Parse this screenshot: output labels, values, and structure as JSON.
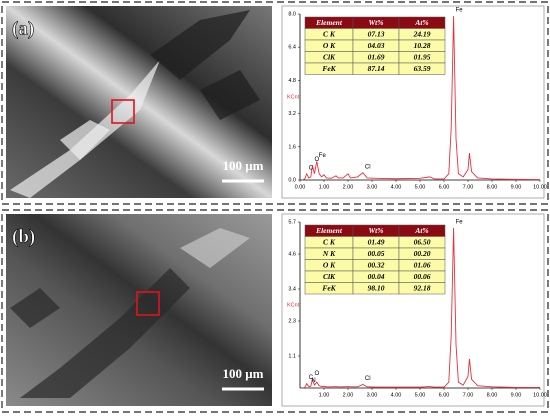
{
  "chart_data": [
    {
      "type": "line",
      "panel_label": "(a)",
      "scale_bar": "100 μm",
      "ylabel": "KCnt",
      "x": [
        0.1,
        0.2,
        0.28,
        0.36,
        0.45,
        0.52,
        0.6,
        0.7,
        0.8,
        0.9,
        1.0,
        1.1,
        1.3,
        1.5,
        1.6,
        1.8,
        2.0,
        2.1,
        2.4,
        2.62,
        2.8,
        3.2,
        4.0,
        5.0,
        5.4,
        5.6,
        6.0,
        6.2,
        6.3,
        6.4,
        6.5,
        6.6,
        6.8,
        7.0,
        7.06,
        7.15,
        7.4,
        8.0,
        9.0,
        10.0
      ],
      "series": [
        {
          "color": "#e8303a",
          "values": [
            0,
            0.05,
            0.3,
            0.1,
            0.15,
            0.7,
            0.3,
            0.9,
            0.3,
            0.15,
            0.25,
            0.1,
            0.08,
            0.2,
            0.1,
            0.1,
            0.3,
            0.1,
            0.15,
            0.35,
            0.1,
            0.08,
            0.06,
            0.08,
            0.15,
            0.05,
            0.05,
            0.3,
            2.5,
            7.9,
            2.0,
            0.3,
            0.15,
            0.5,
            1.3,
            0.4,
            0.1,
            0.05,
            0.03,
            0.02
          ]
        }
      ],
      "xlim": [
        0,
        10
      ],
      "xticks": [
        {
          "value": 0,
          "label": "0.00"
        },
        {
          "value": 1,
          "label": "1.00"
        },
        {
          "value": 2,
          "label": "2.00"
        },
        {
          "value": 3,
          "label": "3.00"
        },
        {
          "value": 4,
          "label": "4.00"
        },
        {
          "value": 5,
          "label": "5.00"
        },
        {
          "value": 6,
          "label": "6.00"
        },
        {
          "value": 7,
          "label": "7.00"
        },
        {
          "value": 8,
          "label": "8.00"
        },
        {
          "value": 9,
          "label": "9.00"
        },
        {
          "value": 10,
          "label": "10.00"
        }
      ],
      "ylim": [
        0,
        8.0
      ],
      "yticks": [
        {
          "value": 0,
          "label": "0.0"
        },
        1.6,
        3.2,
        4.8,
        6.4,
        {
          "value": 8,
          "label": "8.0"
        }
      ],
      "annotations": [
        {
          "text": "Fe",
          "x": 6.4
        },
        {
          "text": "C",
          "x": 0.28
        },
        {
          "text": "O",
          "x": 0.52
        },
        {
          "text": "Fe",
          "x": 0.7
        },
        {
          "text": "Cl",
          "x": 2.62
        }
      ],
      "table": {
        "header": [
          "Element",
          "Wt%",
          "At%"
        ],
        "rows": [
          [
            "C K",
            "07.13",
            "24.19"
          ],
          [
            "O K",
            "04.03",
            "10.28"
          ],
          [
            "ClK",
            "01.69",
            "01.95"
          ],
          [
            "FeK",
            "87.14",
            "63.59"
          ]
        ]
      }
    },
    {
      "type": "line",
      "panel_label": "(b)",
      "scale_bar": "100 μm",
      "ylabel": "KCnt",
      "x": [
        0.1,
        0.2,
        0.28,
        0.36,
        0.45,
        0.52,
        0.6,
        0.7,
        0.8,
        0.9,
        1.0,
        1.1,
        1.3,
        1.5,
        1.6,
        1.8,
        2.0,
        2.1,
        2.4,
        2.62,
        2.8,
        3.2,
        4.0,
        5.0,
        5.4,
        5.6,
        6.0,
        6.2,
        6.3,
        6.4,
        6.5,
        6.6,
        6.8,
        7.0,
        7.06,
        7.15,
        7.4,
        8.0,
        9.0,
        10.0
      ],
      "series": [
        {
          "color": "#e8303a",
          "values": [
            0,
            0.02,
            0.15,
            0.05,
            0.06,
            0.3,
            0.1,
            0.2,
            0.08,
            0.05,
            0.06,
            0.04,
            0.04,
            0.05,
            0.04,
            0.04,
            0.05,
            0.04,
            0.04,
            0.12,
            0.04,
            0.03,
            0.03,
            0.03,
            0.05,
            0.03,
            0.03,
            0.2,
            1.8,
            5.5,
            1.5,
            0.2,
            0.1,
            0.4,
            1.0,
            0.3,
            0.08,
            0.04,
            0.02,
            0.02
          ]
        }
      ],
      "xlim": [
        0,
        10
      ],
      "xticks": [
        {
          "value": 1,
          "label": "1.00"
        },
        {
          "value": 2,
          "label": "2.00"
        },
        {
          "value": 3,
          "label": "3.00"
        },
        {
          "value": 4,
          "label": "4.00"
        },
        {
          "value": 5,
          "label": "5.00"
        },
        {
          "value": 6,
          "label": "6.00"
        },
        {
          "value": 7,
          "label": "7.00"
        },
        {
          "value": 8,
          "label": "8.00"
        },
        {
          "value": 9,
          "label": "9.00"
        },
        {
          "value": 10,
          "label": "10.00"
        }
      ],
      "ylim": [
        0,
        5.7
      ],
      "yticks": [
        1.1,
        2.3,
        3.4,
        4.6,
        5.7
      ],
      "annotations": [
        {
          "text": "Fe",
          "x": 6.4
        },
        {
          "text": "C",
          "x": 0.28
        },
        {
          "text": "N",
          "x": 0.39
        },
        {
          "text": "O",
          "x": 0.52
        },
        {
          "text": "Cl",
          "x": 2.62
        }
      ],
      "table": {
        "header": [
          "Element",
          "Wt%",
          "At%"
        ],
        "rows": [
          [
            "C K",
            "01.49",
            "06.50"
          ],
          [
            "N K",
            "00.05",
            "00.20"
          ],
          [
            "O K",
            "00.32",
            "01.06"
          ],
          [
            "ClK",
            "00.04",
            "00.06"
          ],
          [
            "FeK",
            "98.10",
            "92.18"
          ]
        ]
      }
    }
  ]
}
